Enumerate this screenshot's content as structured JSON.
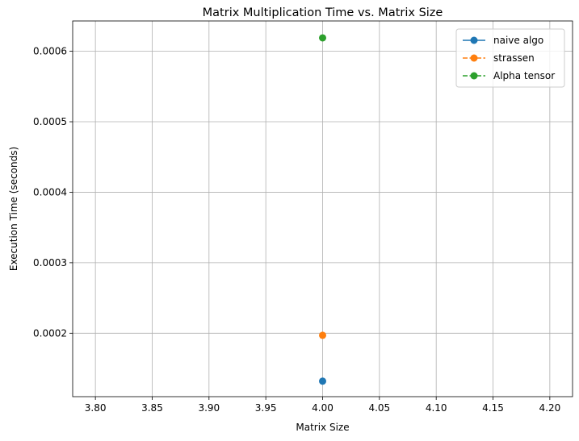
{
  "chart_data": {
    "type": "line",
    "title": "Matrix Multiplication Time vs. Matrix Size",
    "xlabel": "Matrix Size",
    "ylabel": "Execution Time (seconds)",
    "xlim": [
      3.78,
      4.22
    ],
    "ylim": [
      0.00011,
      0.000643
    ],
    "xticks": [
      3.8,
      3.85,
      3.9,
      3.95,
      4.0,
      4.05,
      4.1,
      4.15,
      4.2
    ],
    "xtick_labels": [
      "3.80",
      "3.85",
      "3.90",
      "3.95",
      "4.00",
      "4.05",
      "4.10",
      "4.15",
      "4.20"
    ],
    "yticks": [
      0.0002,
      0.0003,
      0.0004,
      0.0005,
      0.0006
    ],
    "ytick_labels": [
      "0.0002",
      "0.0003",
      "0.0004",
      "0.0005",
      "0.0006"
    ],
    "grid": true,
    "legend_position": "top-right",
    "series": [
      {
        "name": "naive algo",
        "color": "#1f77b4",
        "linestyle": "solid",
        "marker": "circle",
        "x": [
          4
        ],
        "y": [
          0.000132
        ]
      },
      {
        "name": "strassen",
        "color": "#ff7f0e",
        "linestyle": "dashed",
        "marker": "circle",
        "x": [
          4
        ],
        "y": [
          0.000197
        ]
      },
      {
        "name": "Alpha tensor",
        "color": "#2ca02c",
        "linestyle": "dashed",
        "marker": "circle",
        "x": [
          4
        ],
        "y": [
          0.000619
        ]
      }
    ]
  }
}
